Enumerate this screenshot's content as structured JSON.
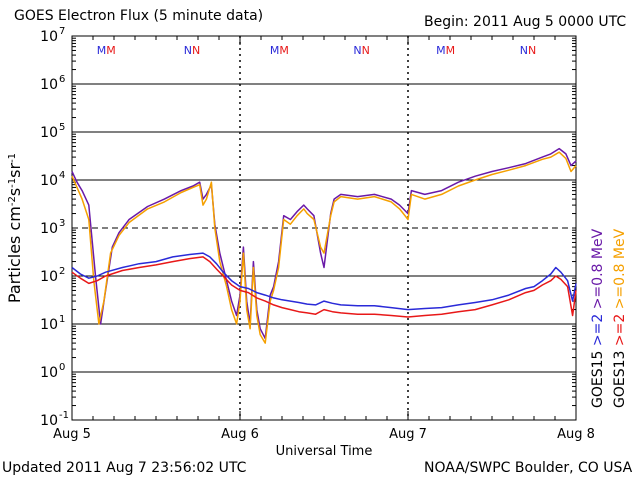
{
  "header": {
    "title": "GOES Electron Flux (5 minute data)",
    "begin": "Begin: 2011 Aug 5 0000 UTC"
  },
  "footer": {
    "updated": "Updated 2011 Aug  7 23:56:02 UTC",
    "credit": "NOAA/SWPC Boulder, CO USA"
  },
  "chart_data": {
    "type": "line",
    "title": "GOES Electron Flux (5 minute data)",
    "xlabel": "Universal Time",
    "ylabel": "Particles cm-2s-1sr-1",
    "ylabel_parts": {
      "main": "Particles cm",
      "e1": "-2",
      "s": "s",
      "e2": "-1",
      "sr": "sr",
      "e3": "-1"
    },
    "scale": "log",
    "ylim_exp": [
      -1,
      7
    ],
    "yticks": [
      {
        "exp": -1,
        "base": "10",
        "sup": "-1"
      },
      {
        "exp": 0,
        "base": "10",
        "sup": "0"
      },
      {
        "exp": 1,
        "base": "10",
        "sup": "1"
      },
      {
        "exp": 2,
        "base": "10",
        "sup": "2"
      },
      {
        "exp": 3,
        "base": "10",
        "sup": "3"
      },
      {
        "exp": 4,
        "base": "10",
        "sup": "4"
      },
      {
        "exp": 5,
        "base": "10",
        "sup": "5"
      },
      {
        "exp": 6,
        "base": "10",
        "sup": "6"
      },
      {
        "exp": 7,
        "base": "10",
        "sup": "7"
      }
    ],
    "x_range_days": [
      0,
      3
    ],
    "xticks": [
      {
        "day": 0,
        "label": "Aug 5"
      },
      {
        "day": 1,
        "label": "Aug 6"
      },
      {
        "day": 2,
        "label": "Aug 7"
      },
      {
        "day": 3,
        "label": "Aug 8"
      }
    ],
    "grid": "horizontal lines at each decade; dashed at 10^3",
    "markers": [
      {
        "label": "MM",
        "day": 0.21
      },
      {
        "label": "NN",
        "day": 0.72
      },
      {
        "label": "MM",
        "day": 1.24
      },
      {
        "label": "NN",
        "day": 1.73
      },
      {
        "label": "MM",
        "day": 2.23
      },
      {
        "label": "NN",
        "day": 2.72
      }
    ],
    "legend_left": [
      {
        "satellite": "GOES15",
        "text": ">=2",
        "color": "#2a2ad8"
      },
      {
        "satellite": "GOES15",
        "text": ">=0.8  MeV",
        "color": "#6a1aa8"
      }
    ],
    "legend_right": [
      {
        "satellite": "GOES13",
        "text": ">=2",
        "color": "#e81818"
      },
      {
        "satellite": "GOES13",
        "text": ">=0.8  MeV",
        "color": "#f5a000"
      }
    ],
    "series": [
      {
        "name": "GOES15 >=0.8 MeV",
        "color": "#6a1aa8",
        "points": [
          [
            0.0,
            15000
          ],
          [
            0.03,
            9000
          ],
          [
            0.06,
            6000
          ],
          [
            0.1,
            3000
          ],
          [
            0.14,
            100
          ],
          [
            0.17,
            10
          ],
          [
            0.2,
            50
          ],
          [
            0.24,
            400
          ],
          [
            0.28,
            800
          ],
          [
            0.34,
            1500
          ],
          [
            0.45,
            2800
          ],
          [
            0.55,
            4000
          ],
          [
            0.65,
            6000
          ],
          [
            0.72,
            7500
          ],
          [
            0.76,
            9000
          ],
          [
            0.78,
            4000
          ],
          [
            0.8,
            5000
          ],
          [
            0.83,
            8000
          ],
          [
            0.85,
            1200
          ],
          [
            0.88,
            300
          ],
          [
            0.92,
            80
          ],
          [
            0.95,
            30
          ],
          [
            0.98,
            15
          ],
          [
            1.0,
            40
          ],
          [
            1.02,
            400
          ],
          [
            1.04,
            30
          ],
          [
            1.06,
            10
          ],
          [
            1.08,
            200
          ],
          [
            1.1,
            20
          ],
          [
            1.12,
            8
          ],
          [
            1.15,
            5
          ],
          [
            1.18,
            40
          ],
          [
            1.2,
            60
          ],
          [
            1.23,
            200
          ],
          [
            1.26,
            1800
          ],
          [
            1.3,
            1500
          ],
          [
            1.34,
            2200
          ],
          [
            1.38,
            3000
          ],
          [
            1.4,
            2500
          ],
          [
            1.44,
            1800
          ],
          [
            1.48,
            300
          ],
          [
            1.5,
            150
          ],
          [
            1.54,
            2000
          ],
          [
            1.56,
            4000
          ],
          [
            1.6,
            5000
          ],
          [
            1.7,
            4500
          ],
          [
            1.8,
            5000
          ],
          [
            1.9,
            4000
          ],
          [
            1.95,
            3000
          ],
          [
            2.0,
            2000
          ],
          [
            2.02,
            6000
          ],
          [
            2.1,
            5000
          ],
          [
            2.2,
            6000
          ],
          [
            2.3,
            9000
          ],
          [
            2.4,
            12000
          ],
          [
            2.5,
            15000
          ],
          [
            2.6,
            18000
          ],
          [
            2.7,
            22000
          ],
          [
            2.8,
            30000
          ],
          [
            2.85,
            35000
          ],
          [
            2.9,
            45000
          ],
          [
            2.94,
            35000
          ],
          [
            2.97,
            20000
          ],
          [
            3.0,
            25000
          ]
        ]
      },
      {
        "name": "GOES13 >=0.8 MeV",
        "color": "#f5a000",
        "points": [
          [
            0.0,
            12000
          ],
          [
            0.03,
            7000
          ],
          [
            0.06,
            4000
          ],
          [
            0.1,
            1500
          ],
          [
            0.13,
            80
          ],
          [
            0.16,
            10
          ],
          [
            0.19,
            30
          ],
          [
            0.23,
            300
          ],
          [
            0.28,
            700
          ],
          [
            0.34,
            1300
          ],
          [
            0.45,
            2500
          ],
          [
            0.55,
            3500
          ],
          [
            0.65,
            5500
          ],
          [
            0.72,
            7000
          ],
          [
            0.76,
            8000
          ],
          [
            0.78,
            3000
          ],
          [
            0.8,
            4000
          ],
          [
            0.83,
            9000
          ],
          [
            0.85,
            1000
          ],
          [
            0.88,
            200
          ],
          [
            0.92,
            60
          ],
          [
            0.95,
            20
          ],
          [
            0.98,
            10
          ],
          [
            1.0,
            30
          ],
          [
            1.02,
            300
          ],
          [
            1.04,
            20
          ],
          [
            1.06,
            8
          ],
          [
            1.08,
            150
          ],
          [
            1.1,
            15
          ],
          [
            1.12,
            6
          ],
          [
            1.15,
            4
          ],
          [
            1.18,
            30
          ],
          [
            1.2,
            50
          ],
          [
            1.23,
            150
          ],
          [
            1.26,
            1500
          ],
          [
            1.3,
            1200
          ],
          [
            1.34,
            1800
          ],
          [
            1.38,
            2500
          ],
          [
            1.4,
            2000
          ],
          [
            1.44,
            1500
          ],
          [
            1.48,
            400
          ],
          [
            1.5,
            300
          ],
          [
            1.54,
            1800
          ],
          [
            1.56,
            3500
          ],
          [
            1.6,
            4500
          ],
          [
            1.7,
            4000
          ],
          [
            1.8,
            4500
          ],
          [
            1.9,
            3500
          ],
          [
            1.95,
            2500
          ],
          [
            2.0,
            1500
          ],
          [
            2.02,
            5000
          ],
          [
            2.1,
            4000
          ],
          [
            2.2,
            5000
          ],
          [
            2.3,
            7500
          ],
          [
            2.4,
            10000
          ],
          [
            2.5,
            13000
          ],
          [
            2.6,
            16000
          ],
          [
            2.7,
            20000
          ],
          [
            2.8,
            27000
          ],
          [
            2.85,
            30000
          ],
          [
            2.9,
            38000
          ],
          [
            2.94,
            28000
          ],
          [
            2.97,
            15000
          ],
          [
            3.0,
            20000
          ]
        ]
      },
      {
        "name": "GOES15 >=2 MeV",
        "color": "#2a2ad8",
        "points": [
          [
            0.0,
            150
          ],
          [
            0.05,
            110
          ],
          [
            0.1,
            90
          ],
          [
            0.15,
            100
          ],
          [
            0.2,
            120
          ],
          [
            0.3,
            150
          ],
          [
            0.4,
            180
          ],
          [
            0.5,
            200
          ],
          [
            0.6,
            250
          ],
          [
            0.7,
            280
          ],
          [
            0.78,
            300
          ],
          [
            0.82,
            250
          ],
          [
            0.86,
            180
          ],
          [
            0.9,
            120
          ],
          [
            0.95,
            80
          ],
          [
            1.0,
            60
          ],
          [
            1.05,
            55
          ],
          [
            1.1,
            45
          ],
          [
            1.15,
            40
          ],
          [
            1.2,
            35
          ],
          [
            1.25,
            32
          ],
          [
            1.3,
            30
          ],
          [
            1.35,
            28
          ],
          [
            1.4,
            26
          ],
          [
            1.45,
            25
          ],
          [
            1.5,
            30
          ],
          [
            1.55,
            27
          ],
          [
            1.6,
            25
          ],
          [
            1.7,
            24
          ],
          [
            1.8,
            24
          ],
          [
            1.9,
            22
          ],
          [
            2.0,
            20
          ],
          [
            2.1,
            21
          ],
          [
            2.2,
            22
          ],
          [
            2.3,
            25
          ],
          [
            2.4,
            28
          ],
          [
            2.5,
            32
          ],
          [
            2.6,
            40
          ],
          [
            2.7,
            55
          ],
          [
            2.75,
            60
          ],
          [
            2.8,
            80
          ],
          [
            2.85,
            110
          ],
          [
            2.88,
            150
          ],
          [
            2.91,
            120
          ],
          [
            2.95,
            80
          ],
          [
            2.98,
            30
          ],
          [
            3.0,
            70
          ]
        ]
      },
      {
        "name": "GOES13 >=2 MeV",
        "color": "#e81818",
        "points": [
          [
            0.0,
            120
          ],
          [
            0.05,
            90
          ],
          [
            0.1,
            70
          ],
          [
            0.15,
            80
          ],
          [
            0.2,
            100
          ],
          [
            0.3,
            130
          ],
          [
            0.4,
            150
          ],
          [
            0.5,
            170
          ],
          [
            0.6,
            200
          ],
          [
            0.7,
            230
          ],
          [
            0.78,
            250
          ],
          [
            0.82,
            200
          ],
          [
            0.86,
            140
          ],
          [
            0.9,
            100
          ],
          [
            0.95,
            65
          ],
          [
            1.0,
            50
          ],
          [
            1.05,
            45
          ],
          [
            1.1,
            35
          ],
          [
            1.15,
            30
          ],
          [
            1.2,
            25
          ],
          [
            1.25,
            22
          ],
          [
            1.3,
            20
          ],
          [
            1.35,
            18
          ],
          [
            1.4,
            17
          ],
          [
            1.45,
            16
          ],
          [
            1.5,
            20
          ],
          [
            1.55,
            18
          ],
          [
            1.6,
            17
          ],
          [
            1.7,
            16
          ],
          [
            1.8,
            16
          ],
          [
            1.9,
            15
          ],
          [
            2.0,
            14
          ],
          [
            2.1,
            15
          ],
          [
            2.2,
            16
          ],
          [
            2.3,
            18
          ],
          [
            2.4,
            20
          ],
          [
            2.5,
            25
          ],
          [
            2.6,
            32
          ],
          [
            2.7,
            45
          ],
          [
            2.75,
            50
          ],
          [
            2.8,
            65
          ],
          [
            2.85,
            80
          ],
          [
            2.88,
            100
          ],
          [
            2.91,
            85
          ],
          [
            2.95,
            60
          ],
          [
            2.98,
            15
          ],
          [
            3.0,
            50
          ]
        ]
      }
    ]
  }
}
